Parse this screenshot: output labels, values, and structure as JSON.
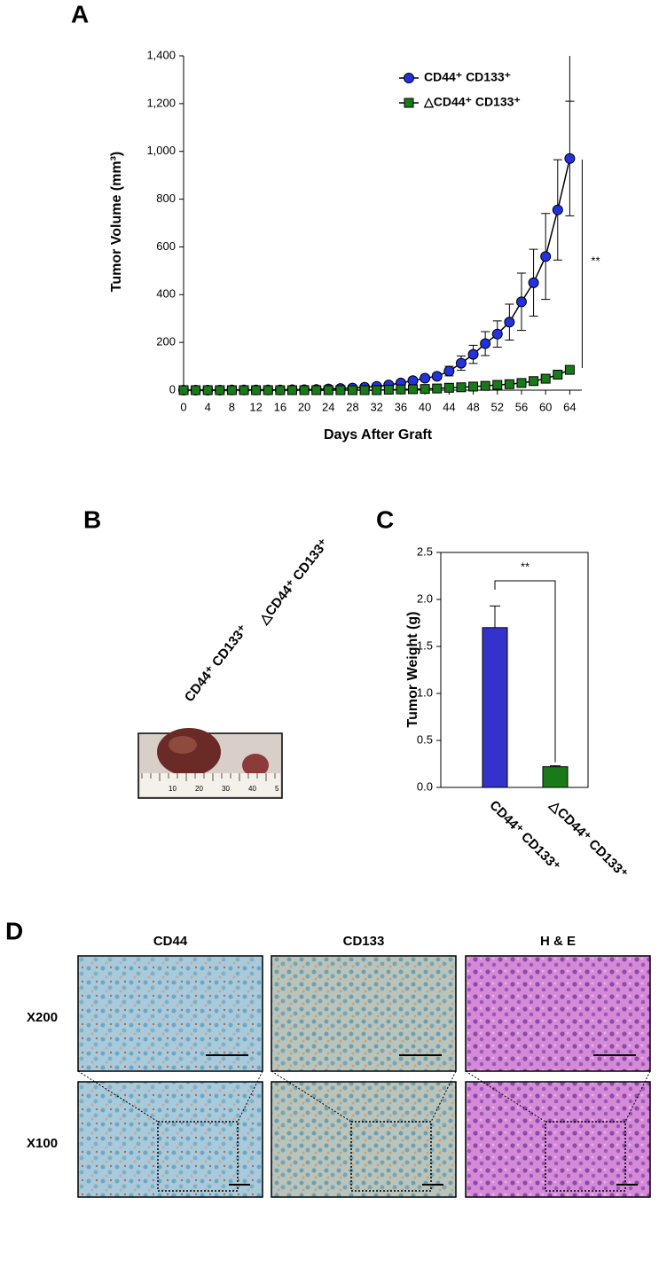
{
  "figure": {
    "panel_labels": [
      "A",
      "B",
      "C",
      "D"
    ],
    "photo_labels": [
      "CD44⁺ CD133⁺",
      "△CD44⁺ CD133⁺"
    ],
    "ruler_labels": [
      "10",
      "20",
      "30",
      "40",
      "5"
    ],
    "histology": {
      "columns": [
        "CD44",
        "CD133",
        "H & E"
      ],
      "rows": [
        "X200",
        "X100"
      ]
    }
  },
  "chart_data": [
    {
      "type": "line",
      "xlabel": "Days After Graft",
      "ylabel": "Tumor Volume (mm³)",
      "x": [
        0,
        2,
        4,
        6,
        8,
        10,
        12,
        14,
        16,
        18,
        20,
        22,
        24,
        26,
        28,
        30,
        32,
        34,
        36,
        38,
        40,
        42,
        44,
        46,
        48,
        50,
        52,
        54,
        56,
        58,
        60,
        62,
        64
      ],
      "series": [
        {
          "name": "CD44⁺ CD133⁺",
          "color": "#2233dd",
          "marker": "circle",
          "values": [
            0,
            0,
            0,
            0,
            1,
            1,
            1,
            1,
            1,
            2,
            2,
            3,
            5,
            7,
            9,
            12,
            16,
            22,
            30,
            40,
            50,
            58,
            80,
            113,
            150,
            195,
            235,
            285,
            370,
            450,
            560,
            755,
            970
          ],
          "errors": [
            0,
            0,
            0,
            0,
            0,
            0,
            0,
            0,
            0,
            0,
            1,
            1,
            2,
            2,
            3,
            4,
            5,
            6,
            7,
            8,
            10,
            12,
            20,
            30,
            38,
            50,
            55,
            75,
            120,
            140,
            180,
            210,
            240
          ]
        },
        {
          "name": "△CD44⁺ CD133⁺",
          "color": "#1a7a1a",
          "marker": "square",
          "values": [
            0,
            0,
            0,
            0,
            0,
            0,
            0,
            0,
            0,
            0,
            0,
            0,
            0,
            0,
            0,
            0,
            0,
            2,
            3,
            4,
            5,
            7,
            10,
            12,
            15,
            18,
            22,
            25,
            30,
            38,
            48,
            65,
            85
          ],
          "errors": [
            0,
            0,
            0,
            0,
            0,
            0,
            0,
            0,
            0,
            0,
            0,
            0,
            0,
            0,
            0,
            0,
            0,
            0,
            0,
            0,
            0,
            0,
            2,
            2,
            3,
            3,
            4,
            4,
            5,
            6,
            7,
            8,
            10
          ]
        }
      ],
      "xlim": [
        0,
        66
      ],
      "xticks": [
        0,
        4,
        8,
        12,
        16,
        20,
        24,
        28,
        32,
        36,
        40,
        44,
        48,
        52,
        56,
        60,
        64
      ],
      "ylim": [
        0,
        1400
      ],
      "yticks": [
        0,
        200,
        400,
        600,
        800,
        {
          "value": 1000,
          "label": "1,000"
        },
        {
          "value": 1200,
          "label": "1,200"
        },
        {
          "value": 1400,
          "label": "1,400"
        }
      ],
      "annotation": "**",
      "legend": "top-right"
    },
    {
      "type": "bar",
      "ylabel": "Tumor Weight (g)",
      "categories": [
        "CD44⁺ CD133⁺",
        "△CD44⁺ CD133⁺"
      ],
      "values": [
        1.7,
        0.22
      ],
      "errors": [
        0.23,
        0.01
      ],
      "colors": [
        "#3333cc",
        "#1a7a1a"
      ],
      "ylim": [
        0,
        2.5
      ],
      "yticks": [
        {
          "value": 0,
          "label": "0.0"
        },
        0.5,
        {
          "value": 1,
          "label": "1.0"
        },
        1.5,
        {
          "value": 2,
          "label": "2.0"
        },
        2.5
      ],
      "annotation": "**"
    }
  ]
}
